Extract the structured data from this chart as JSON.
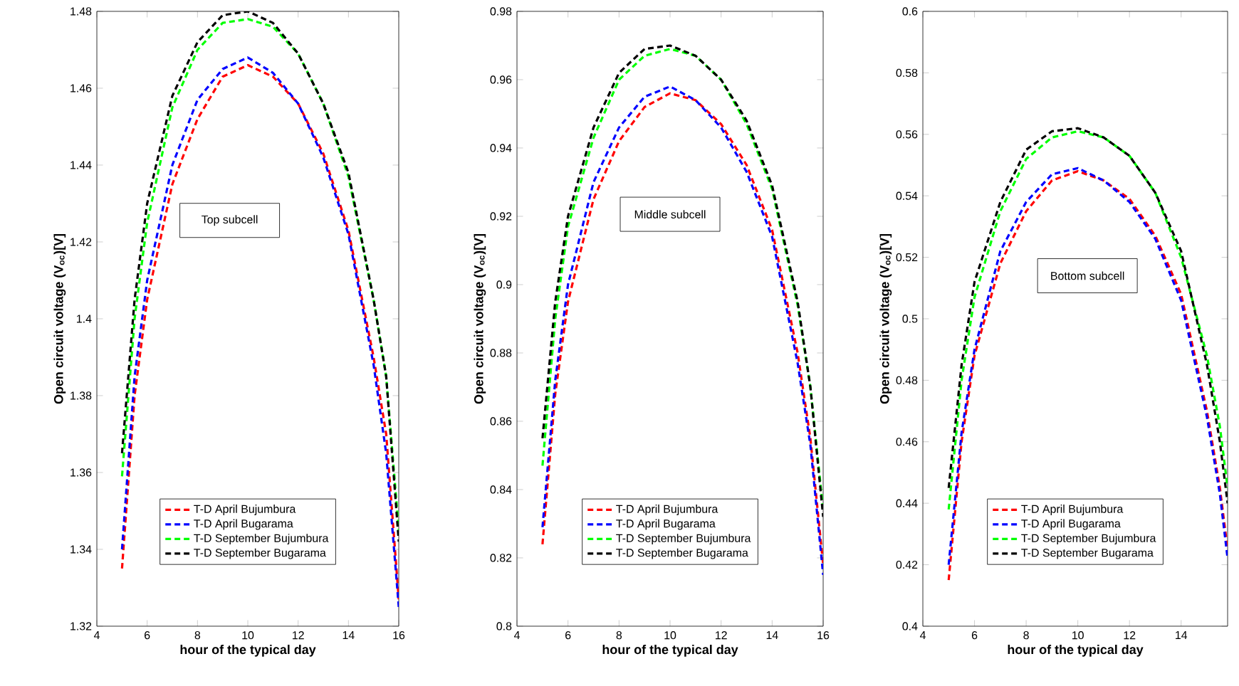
{
  "chart_data": [
    {
      "type": "line",
      "xlabel": "hour of the typical day",
      "ylabel": "Open circuit voltage (V$_{oc}$)[V]",
      "annotations": [
        "Top subcell"
      ],
      "xlim": [
        4,
        16
      ],
      "xticks": [
        4,
        6,
        8,
        10,
        12,
        14,
        16
      ],
      "ylim": [
        1.32,
        1.48
      ],
      "yticks": [
        1.32,
        1.34,
        1.36,
        1.38,
        1.4,
        1.42,
        1.44,
        1.46,
        1.48
      ],
      "legend": "bottom",
      "line_style": "dashed",
      "x": [
        5,
        5.5,
        6,
        7,
        8,
        9,
        10,
        11,
        12,
        13,
        14,
        15,
        15.5,
        16
      ],
      "series": [
        {
          "name": "T-D April Bujumbura",
          "color": "#ff0000",
          "values": [
            1.335,
            1.38,
            1.405,
            1.435,
            1.452,
            1.463,
            1.466,
            1.463,
            1.456,
            1.443,
            1.423,
            1.39,
            1.37,
            1.327
          ]
        },
        {
          "name": "T-D April Bugarama",
          "color": "#0000ff",
          "values": [
            1.34,
            1.385,
            1.41,
            1.44,
            1.457,
            1.465,
            1.468,
            1.464,
            1.456,
            1.442,
            1.422,
            1.388,
            1.365,
            1.325
          ]
        },
        {
          "name": "T-D September Bujumbura",
          "color": "#00ff00",
          "values": [
            1.359,
            1.4,
            1.425,
            1.455,
            1.47,
            1.477,
            1.478,
            1.476,
            1.469,
            1.456,
            1.437,
            1.405,
            1.385,
            1.345
          ]
        },
        {
          "name": "T-D September Bugarama",
          "color": "#000000",
          "values": [
            1.365,
            1.405,
            1.43,
            1.458,
            1.472,
            1.479,
            1.48,
            1.477,
            1.469,
            1.456,
            1.438,
            1.405,
            1.385,
            1.342
          ]
        }
      ]
    },
    {
      "type": "line",
      "xlabel": "hour of the typical day",
      "ylabel": "Open circuit voltage (V$_{oc}$)[V]",
      "annotations": [
        "Middle subcell"
      ],
      "xlim": [
        4,
        16
      ],
      "xticks": [
        4,
        6,
        8,
        10,
        12,
        14,
        16
      ],
      "ylim": [
        0.8,
        0.98
      ],
      "yticks": [
        0.8,
        0.82,
        0.84,
        0.86,
        0.88,
        0.9,
        0.92,
        0.94,
        0.96,
        0.98
      ],
      "legend": "bottom",
      "line_style": "dashed",
      "x": [
        5,
        5.5,
        6,
        7,
        8,
        9,
        10,
        11,
        12,
        13,
        14,
        15,
        15.5,
        16
      ],
      "series": [
        {
          "name": "T-D April Bujumbura",
          "color": "#ff0000",
          "values": [
            0.824,
            0.868,
            0.895,
            0.925,
            0.942,
            0.952,
            0.956,
            0.954,
            0.947,
            0.935,
            0.916,
            0.88,
            0.855,
            0.818
          ]
        },
        {
          "name": "T-D April Bugarama",
          "color": "#0000ff",
          "values": [
            0.829,
            0.872,
            0.9,
            0.93,
            0.946,
            0.955,
            0.958,
            0.954,
            0.946,
            0.933,
            0.914,
            0.877,
            0.853,
            0.815
          ]
        },
        {
          "name": "T-D September Bujumbura",
          "color": "#00ff00",
          "values": [
            0.847,
            0.89,
            0.917,
            0.943,
            0.96,
            0.967,
            0.969,
            0.967,
            0.96,
            0.947,
            0.928,
            0.894,
            0.87,
            0.834
          ]
        },
        {
          "name": "T-D September Bugarama",
          "color": "#000000",
          "values": [
            0.855,
            0.895,
            0.92,
            0.946,
            0.962,
            0.969,
            0.97,
            0.967,
            0.96,
            0.948,
            0.929,
            0.895,
            0.87,
            0.832
          ]
        }
      ]
    },
    {
      "type": "line",
      "xlabel": "hour of the typical day",
      "ylabel": "Open circuit voltage (V$_{oc}$)[V]",
      "annotations": [
        "Bottom subcell"
      ],
      "xlim": [
        4,
        15.8
      ],
      "xticks": [
        4,
        6,
        8,
        10,
        12,
        14
      ],
      "ylim": [
        0.4,
        0.6
      ],
      "yticks": [
        0.4,
        0.42,
        0.44,
        0.46,
        0.48,
        0.5,
        0.52,
        0.54,
        0.56,
        0.58,
        0.6
      ],
      "legend": "bottom",
      "line_style": "dashed",
      "x": [
        5,
        5.5,
        6,
        7,
        8,
        9,
        10,
        11,
        12,
        13,
        14,
        15,
        15.5,
        15.8
      ],
      "series": [
        {
          "name": "T-D April Bujumbura",
          "color": "#ff0000",
          "values": [
            0.415,
            0.46,
            0.488,
            0.518,
            0.535,
            0.545,
            0.548,
            0.545,
            0.539,
            0.527,
            0.508,
            0.47,
            0.445,
            0.425
          ]
        },
        {
          "name": "T-D April Bugarama",
          "color": "#0000ff",
          "values": [
            0.42,
            0.463,
            0.49,
            0.522,
            0.538,
            0.547,
            0.549,
            0.545,
            0.538,
            0.526,
            0.506,
            0.468,
            0.443,
            0.422
          ]
        },
        {
          "name": "T-D September Bujumbura",
          "color": "#00ff00",
          "values": [
            0.438,
            0.48,
            0.507,
            0.535,
            0.552,
            0.559,
            0.561,
            0.559,
            0.553,
            0.541,
            0.52,
            0.488,
            0.465,
            0.445
          ]
        },
        {
          "name": "T-D September Bugarama",
          "color": "#000000",
          "values": [
            0.445,
            0.485,
            0.512,
            0.538,
            0.555,
            0.561,
            0.562,
            0.559,
            0.553,
            0.541,
            0.522,
            0.485,
            0.46,
            0.44
          ]
        }
      ]
    }
  ]
}
